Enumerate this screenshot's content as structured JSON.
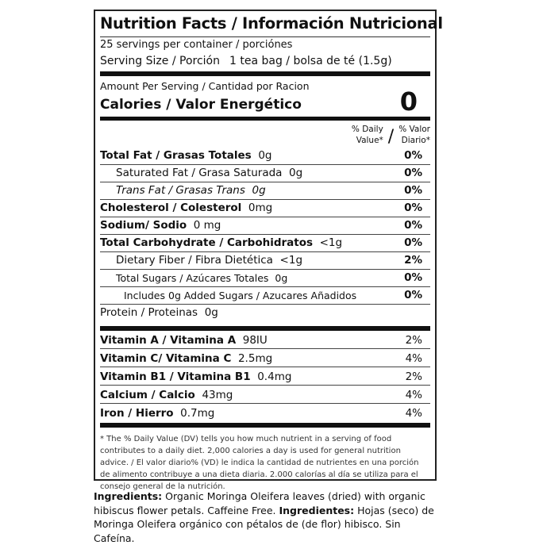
{
  "title": "Nutrition Facts / Información Nutricional",
  "servings": "25 servings per container / porciónes",
  "serving_size": {
    "label": "Serving Size / Porción",
    "value": "1 tea bag / bolsa de té (1.5g)"
  },
  "amount_label": "Amount Per Serving / Cantidad por Racion",
  "calories": {
    "label": "Calories / Valor Energético",
    "value": "0"
  },
  "dv_header": {
    "en_1": "% Daily",
    "en_2": "Value*",
    "slash": "/",
    "es_1": "% Valor",
    "es_2": "Diario*"
  },
  "nutrients": [
    {
      "label": "Total Fat / Grasas Totales",
      "amount": "0g",
      "dv": "0%"
    },
    {
      "label": "Saturated Fat / Grasa Saturada",
      "amount": "0g",
      "dv": "0%"
    },
    {
      "label": "Trans Fat / Grasas Trans",
      "amount": "0g",
      "dv": "0%"
    },
    {
      "label": "Cholesterol / Colesterol",
      "amount": "0mg",
      "dv": "0%"
    },
    {
      "label": "Sodium/ Sodio",
      "amount": "0 mg",
      "dv": "0%"
    },
    {
      "label": "Total Carbohydrate / Carbohidratos",
      "amount": "<1g",
      "dv": "0%"
    },
    {
      "label": "Dietary Fiber / Fibra Dietética",
      "amount": "<1g",
      "dv": "2%"
    },
    {
      "label": "Total Sugars / Azúcares Totales",
      "amount": "0g",
      "dv": "0%"
    },
    {
      "label": "Includes 0g Added Sugars / Azucares Añadidos",
      "amount": "",
      "dv": "0%"
    },
    {
      "label": "Protein / Proteinas",
      "amount": "0g",
      "dv": ""
    }
  ],
  "vitamins": [
    {
      "label": "Vitamin A / Vitamina A",
      "amount": "98IU",
      "dv": "2%"
    },
    {
      "label": "Vitamin C/ Vitamina C",
      "amount": "2.5mg",
      "dv": "4%"
    },
    {
      "label": "Vitamin B1 / Vitamina B1",
      "amount": "0.4mg",
      "dv": "2%"
    },
    {
      "label": "Calcium / Calcio",
      "amount": "43mg",
      "dv": "4%"
    },
    {
      "label": "Iron / Hierro",
      "amount": "0.7mg",
      "dv": "4%"
    }
  ],
  "footnote": "* The % Daily Value (DV) tells you how much nutrient in a serving of food contributes to a daily diet. 2,000 calories a day is used for general nutrition advice. / El valor diario% (VD) le indica la cantidad de nutrientes en una porción de alimento contribuye a una dieta diaria. 2.000 calorías al día se utiliza para el consejo general de la nutrición.",
  "ingredients": {
    "label_en": "Ingredients:",
    "text_en": " Organic Moringa Oleifera leaves (dried) with organic hibiscus flower petals. Caffeine Free. ",
    "label_es": "Ingredientes:",
    "text_es": " Hojas (seco) de Moringa Oleifera orgánico con pétalos de (de flor) hibisco. Sin Cafeína."
  }
}
